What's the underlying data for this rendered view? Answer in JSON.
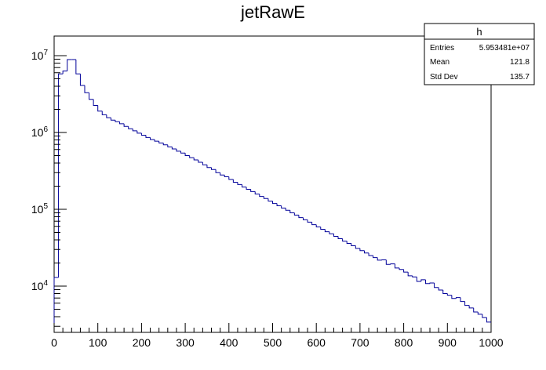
{
  "chart_data": {
    "type": "histogram",
    "title": "jetRawE",
    "xlabel": "",
    "ylabel": "",
    "xlim": [
      0,
      1000
    ],
    "ylim": [
      2500,
      18000000
    ],
    "yscale": "log",
    "line_color": "#000099",
    "grid": false,
    "bin_width": 10,
    "x_ticks": [
      "0",
      "100",
      "200",
      "300",
      "400",
      "500",
      "600",
      "700",
      "800",
      "900",
      "1000"
    ],
    "y_ticks": [
      {
        "value": 10000,
        "base": "10",
        "exp": "4"
      },
      {
        "value": 100000,
        "base": "10",
        "exp": "5"
      },
      {
        "value": 1000000,
        "base": "10",
        "exp": "6"
      },
      {
        "value": 10000000,
        "base": "10",
        "exp": "7"
      }
    ],
    "bin_values": [
      13000,
      5800000,
      6300000,
      8900000,
      8900000,
      5800000,
      4100000,
      3300000,
      2700000,
      2250000,
      1900000,
      1700000,
      1560000,
      1450000,
      1380000,
      1300000,
      1200000,
      1120000,
      1050000,
      980000,
      920000,
      860000,
      810000,
      770000,
      730000,
      690000,
      650000,
      610000,
      570000,
      540000,
      500000,
      470000,
      440000,
      410000,
      380000,
      350000,
      330000,
      300000,
      280000,
      265000,
      245000,
      225000,
      210000,
      195000,
      182000,
      170000,
      158000,
      147000,
      138000,
      128000,
      119000,
      111000,
      104000,
      97000,
      90000,
      84000,
      78000,
      73000,
      68000,
      63000,
      59000,
      55000,
      51000,
      48000,
      44500,
      41500,
      38500,
      36000,
      33500,
      31000,
      29000,
      27000,
      25000,
      23500,
      21800,
      22000,
      19200,
      19500,
      17200,
      16500,
      15200,
      13600,
      13200,
      11500,
      12100,
      10800,
      11000,
      9600,
      8900,
      8000,
      7600,
      6900,
      7100,
      6300,
      5600,
      5200,
      4600,
      4300,
      3900,
      3400
    ]
  },
  "stats_box": {
    "name": "h",
    "rows": [
      {
        "label": "Entries",
        "value": "5.953481e+07"
      },
      {
        "label": "Mean",
        "value": "121.8"
      },
      {
        "label": "Std Dev",
        "value": "135.7"
      }
    ]
  }
}
